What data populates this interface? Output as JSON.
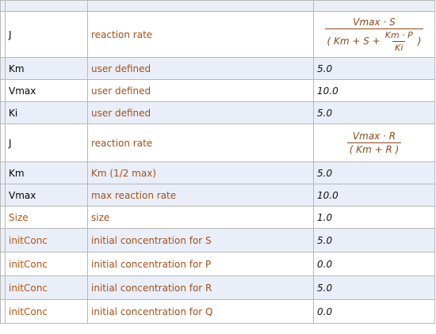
{
  "table": {
    "rows": [
      [
        "J",
        "reaction rate",
        {
          "numerator": "Vmax · S",
          "denominator": "( Km + S +",
          "inner_numerator": "Km · P",
          "inner_denominator": "Ki",
          "close": ")"
        }
      ],
      [
        "Km",
        "user defined",
        "5.0"
      ],
      [
        "Vmax",
        "user defined",
        "10.0"
      ],
      [
        "Ki",
        "user defined",
        "5.0"
      ],
      [
        "J",
        "reaction rate",
        {
          "numerator": "Vmax · R",
          "denominator": "( Km + R )"
        }
      ],
      [
        "Km",
        "Km (1/2 max)",
        "5.0"
      ],
      [
        "Vmax",
        "max reaction rate",
        "10.0"
      ],
      [
        "Size",
        "size",
        "1.0"
      ],
      [
        "initConc",
        "initial concentration for S",
        "5.0"
      ],
      [
        "initConc",
        "initial concentration for P",
        "0.0"
      ],
      [
        "initConc",
        "initial concentration for R",
        "5.0"
      ],
      [
        "initConc",
        "initial concentration for Q",
        "0.0"
      ]
    ]
  }
}
